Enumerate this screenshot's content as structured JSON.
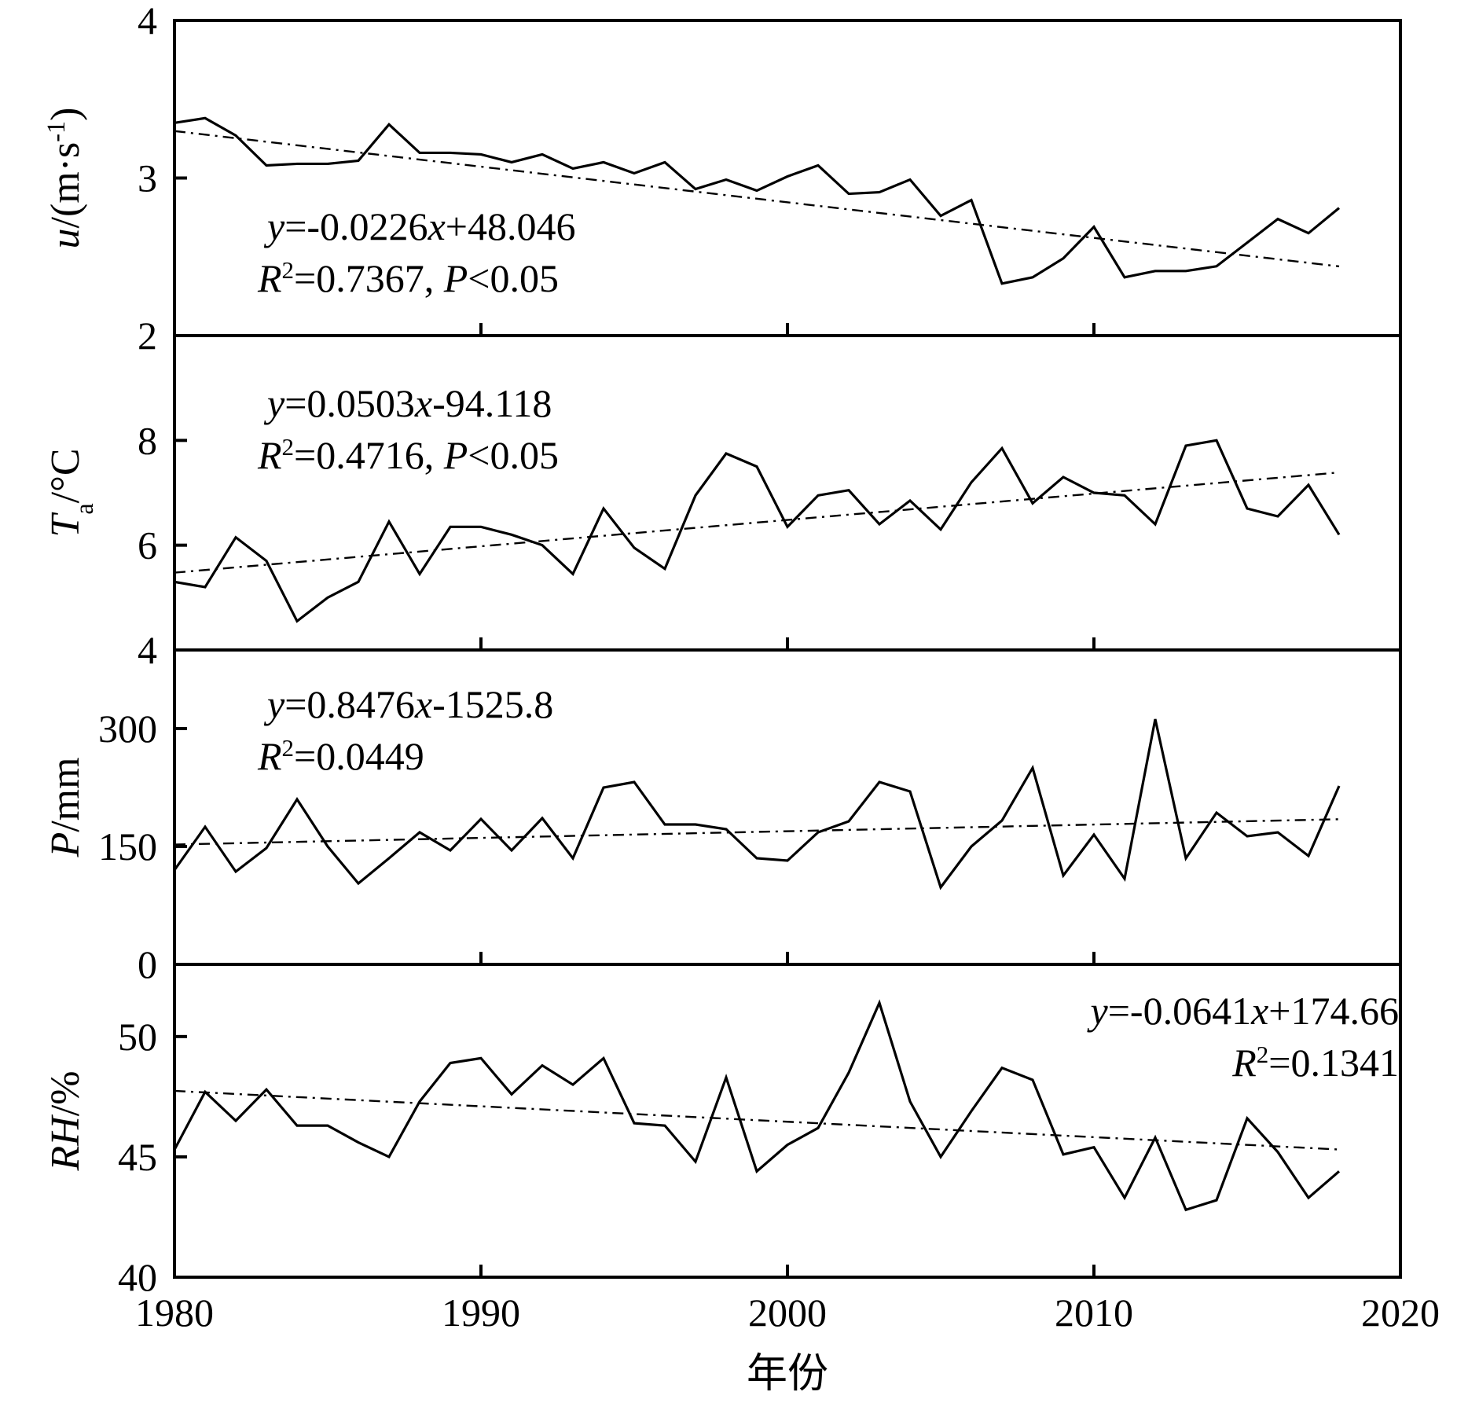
{
  "x_axis": {
    "title": "年份",
    "range": [
      1980,
      2020
    ],
    "ticks": [
      1980,
      1990,
      2000,
      2010,
      2020
    ]
  },
  "chart_data": [
    {
      "type": "line",
      "id": "wind",
      "ylabel_parts": [
        {
          "t": "u",
          "italic": true
        },
        {
          "t": "/(m·s"
        },
        {
          "t": "-1",
          "sup": true
        },
        {
          "t": ")"
        }
      ],
      "ylim": [
        2,
        4
      ],
      "yticks": [
        2,
        3,
        4
      ],
      "x": [
        1980,
        1981,
        1982,
        1983,
        1984,
        1985,
        1986,
        1987,
        1988,
        1989,
        1990,
        1991,
        1992,
        1993,
        1994,
        1995,
        1996,
        1997,
        1998,
        1999,
        2000,
        2001,
        2002,
        2003,
        2004,
        2005,
        2006,
        2007,
        2008,
        2009,
        2010,
        2011,
        2012,
        2013,
        2014,
        2015,
        2016,
        2017,
        2018
      ],
      "series": [
        {
          "name": "observed",
          "style": "solid",
          "values": [
            3.35,
            3.38,
            3.27,
            3.08,
            3.09,
            3.09,
            3.11,
            3.34,
            3.16,
            3.16,
            3.15,
            3.1,
            3.15,
            3.06,
            3.1,
            3.03,
            3.1,
            2.93,
            2.99,
            2.92,
            3.01,
            3.08,
            2.9,
            2.91,
            2.99,
            2.76,
            2.86,
            2.33,
            2.37,
            2.49,
            2.69,
            2.37,
            2.41,
            2.41,
            2.44,
            2.59,
            2.74,
            2.65,
            2.81
          ]
        },
        {
          "name": "trend",
          "style": "dashdot",
          "slope": -0.0226,
          "intercept": 48.046
        }
      ],
      "equation": {
        "anchor": "start",
        "lines": [
          [
            {
              "t": "y",
              "italic": true
            },
            {
              "t": "=-0.0226"
            },
            {
              "t": "x",
              "italic": true
            },
            {
              "t": "+48.046"
            }
          ],
          [
            {
              "t": "R",
              "italic": true
            },
            {
              "t": "2",
              "sup": true
            },
            {
              "t": "=0.7367, "
            },
            {
              "t": "P",
              "italic": true
            },
            {
              "t": "<0.05"
            }
          ]
        ]
      }
    },
    {
      "type": "line",
      "id": "temperature",
      "ylabel_parts": [
        {
          "t": "T",
          "italic": true
        },
        {
          "t": "a",
          "sub": true
        },
        {
          "t": "/°C"
        }
      ],
      "ylim": [
        4,
        10
      ],
      "yticks": [
        4,
        6,
        8
      ],
      "x": [
        1980,
        1981,
        1982,
        1983,
        1984,
        1985,
        1986,
        1987,
        1988,
        1989,
        1990,
        1991,
        1992,
        1993,
        1994,
        1995,
        1996,
        1997,
        1998,
        1999,
        2000,
        2001,
        2002,
        2003,
        2004,
        2005,
        2006,
        2007,
        2008,
        2009,
        2010,
        2011,
        2012,
        2013,
        2014,
        2015,
        2016,
        2017,
        2018
      ],
      "series": [
        {
          "name": "observed",
          "style": "solid",
          "values": [
            5.3,
            5.2,
            6.15,
            5.7,
            4.55,
            5.0,
            5.3,
            6.45,
            5.45,
            6.35,
            6.35,
            6.2,
            6.0,
            5.45,
            6.7,
            5.95,
            5.55,
            6.95,
            7.75,
            7.5,
            6.35,
            6.95,
            7.05,
            6.4,
            6.85,
            6.3,
            7.2,
            7.85,
            6.8,
            7.3,
            7.0,
            6.95,
            6.4,
            7.9,
            8.0,
            6.7,
            6.55,
            7.15,
            6.2
          ]
        },
        {
          "name": "trend",
          "style": "dashdot",
          "slope": 0.0503,
          "intercept": -94.118
        }
      ],
      "equation": {
        "anchor": "start",
        "lines": [
          [
            {
              "t": "y",
              "italic": true
            },
            {
              "t": "=0.0503"
            },
            {
              "t": "x",
              "italic": true
            },
            {
              "t": "-94.118"
            }
          ],
          [
            {
              "t": "R",
              "italic": true
            },
            {
              "t": "2",
              "sup": true
            },
            {
              "t": "=0.4716, "
            },
            {
              "t": "P",
              "italic": true
            },
            {
              "t": "<0.05"
            }
          ]
        ]
      }
    },
    {
      "type": "line",
      "id": "precipitation",
      "ylabel_parts": [
        {
          "t": "P",
          "italic": true
        },
        {
          "t": "/mm"
        }
      ],
      "ylim": [
        0,
        400
      ],
      "yticks": [
        0,
        150,
        300
      ],
      "x": [
        1980,
        1981,
        1982,
        1983,
        1984,
        1985,
        1986,
        1987,
        1988,
        1989,
        1990,
        1991,
        1992,
        1993,
        1994,
        1995,
        1996,
        1997,
        1998,
        1999,
        2000,
        2001,
        2002,
        2003,
        2004,
        2005,
        2006,
        2007,
        2008,
        2009,
        2010,
        2011,
        2012,
        2013,
        2014,
        2015,
        2016,
        2017,
        2018
      ],
      "series": [
        {
          "name": "observed",
          "style": "solid",
          "values": [
            120,
            175,
            118,
            148,
            210,
            150,
            103,
            135,
            168,
            145,
            185,
            145,
            186,
            135,
            225,
            232,
            178,
            178,
            172,
            135,
            132,
            168,
            182,
            232,
            220,
            98,
            150,
            183,
            250,
            113,
            165,
            109,
            312,
            135,
            193,
            163,
            168,
            138,
            227
          ]
        },
        {
          "name": "trend",
          "style": "dashdot",
          "slope": 0.8476,
          "intercept": -1525.8
        }
      ],
      "equation": {
        "anchor": "start",
        "lines": [
          [
            {
              "t": "y",
              "italic": true
            },
            {
              "t": "=0.8476"
            },
            {
              "t": "x",
              "italic": true
            },
            {
              "t": "-1525.8"
            }
          ],
          [
            {
              "t": "R",
              "italic": true
            },
            {
              "t": "2",
              "sup": true
            },
            {
              "t": "=0.0449"
            }
          ]
        ]
      }
    },
    {
      "type": "line",
      "id": "humidity",
      "ylabel_parts": [
        {
          "t": "RH",
          "italic": true
        },
        {
          "t": "/%"
        }
      ],
      "ylim": [
        40,
        53
      ],
      "yticks": [
        40,
        45,
        50
      ],
      "x": [
        1980,
        1981,
        1982,
        1983,
        1984,
        1985,
        1986,
        1987,
        1988,
        1989,
        1990,
        1991,
        1992,
        1993,
        1994,
        1995,
        1996,
        1997,
        1998,
        1999,
        2000,
        2001,
        2002,
        2003,
        2004,
        2005,
        2006,
        2007,
        2008,
        2009,
        2010,
        2011,
        2012,
        2013,
        2014,
        2015,
        2016,
        2017,
        2018
      ],
      "series": [
        {
          "name": "observed",
          "style": "solid",
          "values": [
            45.3,
            47.7,
            46.5,
            47.8,
            46.3,
            46.3,
            45.6,
            45.0,
            47.3,
            48.9,
            49.1,
            47.6,
            48.8,
            48.0,
            49.1,
            46.4,
            46.3,
            44.8,
            48.3,
            44.4,
            45.5,
            46.2,
            48.5,
            51.4,
            47.3,
            45.0,
            46.9,
            48.7,
            48.2,
            45.1,
            45.4,
            43.3,
            45.8,
            42.8,
            43.2,
            46.6,
            45.2,
            43.3,
            44.4
          ]
        },
        {
          "name": "trend",
          "style": "dashdot",
          "slope": -0.0641,
          "intercept": 174.66
        }
      ],
      "equation": {
        "anchor": "end",
        "lines": [
          [
            {
              "t": "y",
              "italic": true
            },
            {
              "t": "=-0.0641"
            },
            {
              "t": "x",
              "italic": true
            },
            {
              "t": "+174.66"
            }
          ],
          [
            {
              "t": "R",
              "italic": true
            },
            {
              "t": "2",
              "sup": true
            },
            {
              "t": "=0.1341"
            }
          ]
        ]
      }
    }
  ]
}
